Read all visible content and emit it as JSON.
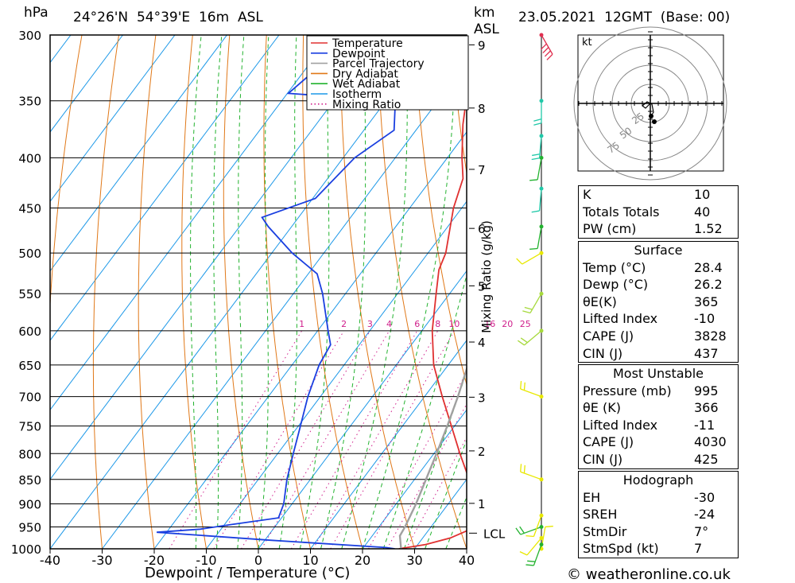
{
  "header": {
    "pressure_unit": "hPa",
    "location": "24°26'N  54°39'E  16m  ASL",
    "km_label": "km",
    "asl_label": "ASL",
    "datetime": "23.05.2021  12GMT  (Base: 00)"
  },
  "copyright": "© weatheronline.co.uk",
  "chart_data": {
    "type": "line",
    "subtype": "skew-T log-P sounding",
    "xlabel": "Dewpoint / Temperature (°C)",
    "ylabel": "hPa",
    "right_axis_label": "Mixing Ratio (g/kg)",
    "xlim": [
      -40,
      40
    ],
    "ylim": [
      1000,
      300
    ],
    "x_ticks": [
      "-40",
      "-30",
      "-20",
      "-10",
      "0",
      "10",
      "20",
      "30",
      "40"
    ],
    "pressure_levels": [
      "300",
      "350",
      "400",
      "450",
      "500",
      "550",
      "600",
      "650",
      "700",
      "750",
      "800",
      "850",
      "900",
      "950",
      "1000"
    ],
    "km_ticks": [
      "1",
      "2",
      "3",
      "4",
      "5",
      "6",
      "7",
      "8",
      "9"
    ],
    "km_pressures": [
      899,
      795,
      701,
      616,
      540,
      472,
      411,
      356,
      307
    ],
    "lcl_label": "LCL",
    "lcl_pressure": 964,
    "mixing_ratio_labels": [
      "1",
      "2",
      "3",
      "4",
      "6",
      "8",
      "10",
      "16",
      "20",
      "25"
    ],
    "legend": [
      "Temperature",
      "Dewpoint",
      "Parcel Trajectory",
      "Dry Adiabat",
      "Wet Adiabat",
      "Isotherm",
      "Mixing Ratio"
    ],
    "legend_position": "top-right of plot",
    "colors": {
      "temperature": "#e03030",
      "dewpoint": "#1a3fe0",
      "parcel": "#a0a0a0",
      "dry_adiabat": "#e07818",
      "wet_adiabat": "#22b22e",
      "isotherm": "#1c98e8",
      "mixing_ratio": "#d0208c"
    },
    "series": [
      {
        "name": "Temperature",
        "points": [
          [
            1000,
            27.0
          ],
          [
            990,
            31.5
          ],
          [
            975,
            35.3
          ],
          [
            960,
            37.3
          ],
          [
            950,
            38.3
          ],
          [
            925,
            37.8
          ],
          [
            900,
            35.6
          ],
          [
            850,
            30.5
          ],
          [
            800,
            25.0
          ],
          [
            750,
            19.4
          ],
          [
            700,
            13.4
          ],
          [
            650,
            7.2
          ],
          [
            600,
            2.0
          ],
          [
            550,
            -2.6
          ],
          [
            520,
            -5.5
          ],
          [
            500,
            -6.6
          ],
          [
            450,
            -11.6
          ],
          [
            420,
            -14.0
          ],
          [
            400,
            -17.2
          ],
          [
            370,
            -21.8
          ],
          [
            350,
            -24.6
          ],
          [
            345,
            -25.2
          ],
          [
            340,
            -22.2
          ],
          [
            334,
            -19.0
          ],
          [
            320,
            -18.6
          ],
          [
            300,
            -20.4
          ]
        ]
      },
      {
        "name": "Dewpoint",
        "points": [
          [
            1000,
            26.2
          ],
          [
            997,
            24.3
          ],
          [
            980,
            1.0
          ],
          [
            962,
            -21.9
          ],
          [
            955,
            -14.0
          ],
          [
            945,
            -8.8
          ],
          [
            930,
            -0.6
          ],
          [
            900,
            -1.6
          ],
          [
            850,
            -4.5
          ],
          [
            800,
            -7.0
          ],
          [
            750,
            -9.6
          ],
          [
            700,
            -12.4
          ],
          [
            650,
            -14.8
          ],
          [
            620,
            -15.5
          ],
          [
            600,
            -18.0
          ],
          [
            550,
            -24.4
          ],
          [
            525,
            -28.3
          ],
          [
            500,
            -36.1
          ],
          [
            470,
            -44.5
          ],
          [
            460,
            -47.0
          ],
          [
            440,
            -39.5
          ],
          [
            400,
            -37.8
          ],
          [
            375,
            -34.2
          ],
          [
            350,
            -38.2
          ],
          [
            344,
            -59.8
          ],
          [
            320,
            -57.4
          ],
          [
            300,
            -52.0
          ]
        ]
      },
      {
        "name": "Parcel Trajectory",
        "points": [
          [
            1000,
            27.4
          ],
          [
            970,
            25.3
          ],
          [
            950,
            25.0
          ],
          [
            900,
            23.8
          ],
          [
            850,
            22.2
          ],
          [
            800,
            20.5
          ],
          [
            750,
            18.6
          ],
          [
            700,
            16.4
          ],
          [
            650,
            13.8
          ],
          [
            600,
            10.8
          ],
          [
            550,
            7.4
          ],
          [
            500,
            3.4
          ],
          [
            450,
            -1.4
          ],
          [
            400,
            -7.2
          ],
          [
            370,
            -11.2
          ]
        ]
      }
    ]
  },
  "wind_panel": {
    "barb_pressures": [
      1000,
      990,
      975,
      950,
      925,
      850,
      700,
      600,
      550,
      500,
      470,
      430,
      400,
      380,
      350,
      300
    ],
    "barb_colors": [
      "#e8e800",
      "#22b22e",
      "#e8e800",
      "#22b22e",
      "#e8e800",
      "#e8e800",
      "#e8e800",
      "#a6d93c",
      "#a6d93c",
      "#e8e800",
      "#22b22e",
      "#20c8a8",
      "#22b22e",
      "#20c8a8",
      "#20c8a8",
      "#e03050"
    ],
    "barb_dirs": [
      10,
      200,
      220,
      250,
      200,
      290,
      290,
      230,
      210,
      240,
      190,
      185,
      190,
      185,
      180,
      150
    ],
    "barb_kt": [
      6,
      15,
      10,
      15,
      8,
      20,
      15,
      20,
      15,
      10,
      5,
      10,
      10,
      15,
      15,
      35
    ]
  },
  "hodograph": {
    "unit_label": "kt",
    "ring_labels": [
      "25",
      "50",
      "75"
    ]
  },
  "indices": {
    "k_label": "K",
    "k": "10",
    "tt_label": "Totals Totals",
    "tt": "40",
    "pw_label": "PW (cm)",
    "pw": "1.52"
  },
  "surface": {
    "title": "Surface",
    "temp_label": "Temp (°C)",
    "temp": "28.4",
    "dewp_label": "Dewp (°C)",
    "dewp": "26.2",
    "theta_e_label": "θE(K)",
    "theta_e": "365",
    "li_label": "Lifted Index",
    "li": "-10",
    "cape_label": "CAPE (J)",
    "cape": "3828",
    "cin_label": "CIN (J)",
    "cin": "437"
  },
  "most_unstable": {
    "title": "Most Unstable",
    "pressure_label": "Pressure (mb)",
    "pressure": "995",
    "theta_e_label": "θE (K)",
    "theta_e": "366",
    "li_label": "Lifted Index",
    "li": "-11",
    "cape_label": "CAPE (J)",
    "cape": "4030",
    "cin_label": "CIN (J)",
    "cin": "425"
  },
  "hodograph_table": {
    "title": "Hodograph",
    "eh_label": "EH",
    "eh": "-30",
    "sreh_label": "SREH",
    "sreh": "-24",
    "stmdir_label": "StmDir",
    "stmdir": "7°",
    "stmspd_label": "StmSpd (kt)",
    "stmspd": "7"
  }
}
